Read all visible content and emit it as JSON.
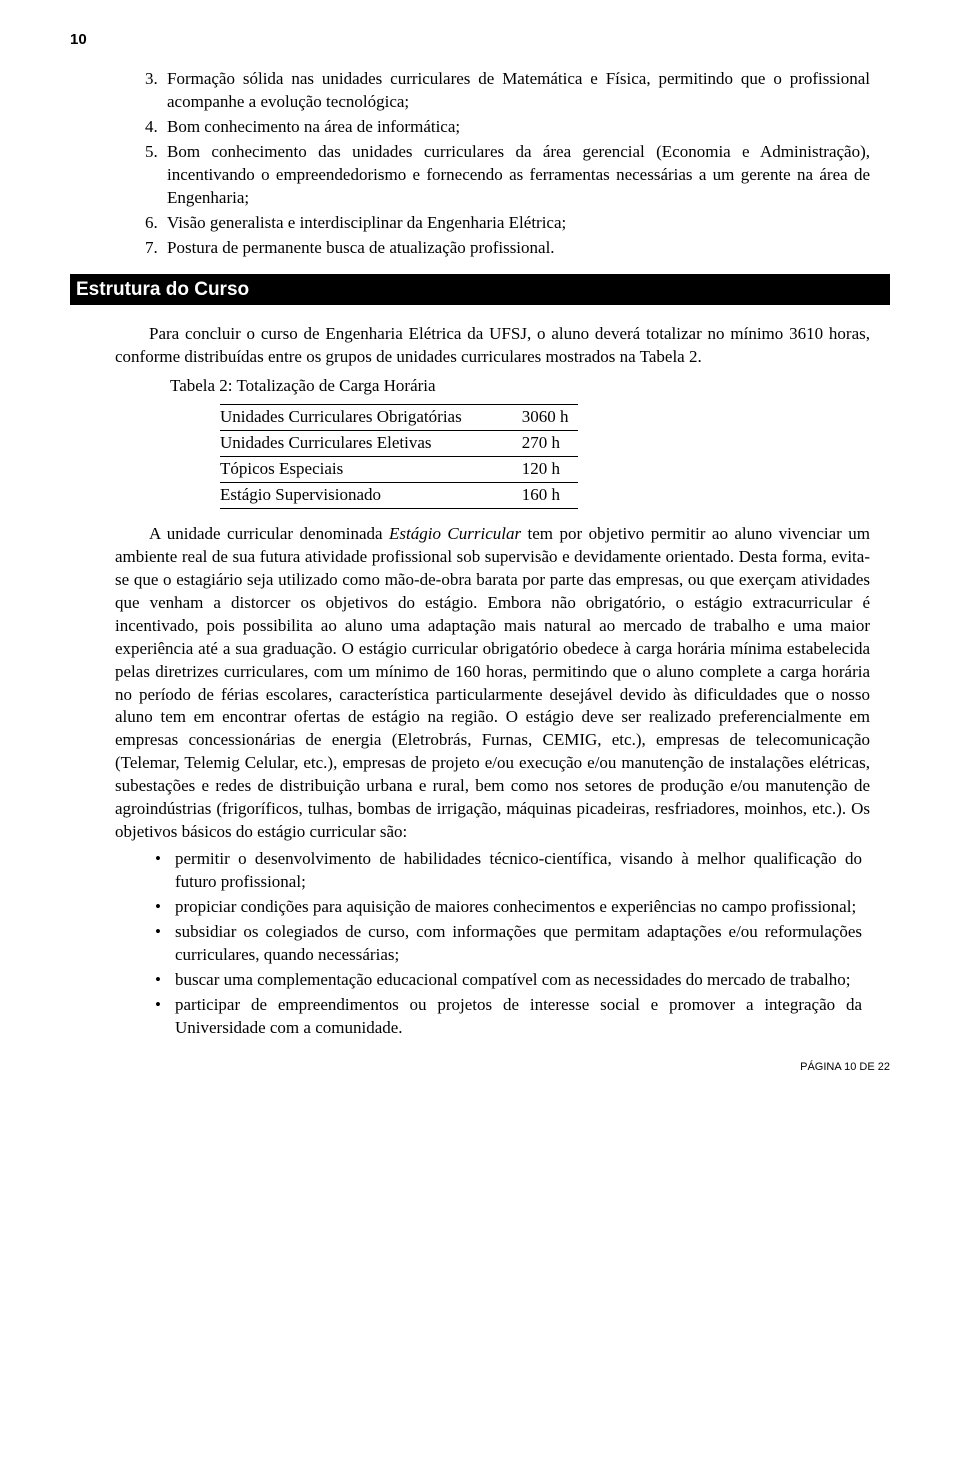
{
  "page_number_top": "10",
  "numbered_items": [
    {
      "n": "3.",
      "t": "Formação sólida nas unidades curriculares de Matemática e Física, permitindo que o profissional acompanhe a evolução tecnológica;"
    },
    {
      "n": "4.",
      "t": "Bom conhecimento na área de informática;"
    },
    {
      "n": "5.",
      "t": "Bom conhecimento das unidades curriculares da área gerencial (Economia e Administração), incentivando o empreendedorismo e fornecendo as ferramentas necessárias a um gerente na área de Engenharia;"
    },
    {
      "n": "6.",
      "t": "Visão generalista e interdisciplinar da Engenharia Elétrica;"
    },
    {
      "n": "7.",
      "t": "Postura de permanente busca de atualização profissional."
    }
  ],
  "section_title": "Estrutura do Curso",
  "para1": "Para concluir o curso de Engenharia Elétrica da UFSJ, o aluno deverá totalizar no mínimo 3610 horas, conforme distribuídas entre os grupos de unidades curriculares mostrados na Tabela 2.",
  "table_caption": "Tabela 2: Totalização de Carga Horária",
  "table_rows": [
    {
      "label": "Unidades Curriculares Obrigatórias",
      "value": "3060 h"
    },
    {
      "label": "Unidades Curriculares Eletivas",
      "value": "270 h"
    },
    {
      "label": "Tópicos Especiais",
      "value": "120 h"
    },
    {
      "label": "Estágio Supervisionado",
      "value": "160 h"
    }
  ],
  "para2_a": "A unidade curricular denominada ",
  "para2_em": "Estágio Curricular",
  "para2_b": " tem por objetivo permitir ao aluno vivenciar um ambiente real de sua futura atividade profissional sob supervisão e devidamente orientado. Desta forma, evita-se que o estagiário seja utilizado como mão-de-obra barata por parte das empresas, ou que exerçam atividades que venham a distorcer os objetivos do estágio. Embora não obrigatório, o estágio extracurricular é incentivado, pois possibilita ao aluno uma adaptação mais natural ao mercado de trabalho e uma maior experiência até a sua graduação. O estágio curricular obrigatório obedece à carga horária mínima estabelecida pelas diretrizes curriculares, com um mínimo de 160 horas, permitindo que o aluno complete a carga horária no período de férias escolares, característica particularmente desejável devido às dificuldades que o nosso aluno tem em encontrar ofertas de estágio na região. O estágio deve ser realizado preferencialmente em empresas concessionárias de energia (Eletrobrás, Furnas, CEMIG, etc.), empresas de telecomunicação (Telemar, Telemig Celular, etc.), empresas de projeto e/ou execução e/ou manutenção de instalações elétricas, subestações e redes de distribuição urbana e rural, bem como nos setores de produção e/ou manutenção de agroindústrias (frigoríficos, tulhas, bombas de irrigação, máquinas picadeiras, resfriadores, moinhos, etc.). Os objetivos básicos do estágio curricular são:",
  "bullets": [
    "permitir o desenvolvimento de habilidades técnico-científica, visando à melhor qualificação do futuro profissional;",
    "propiciar condições para aquisição de maiores conhecimentos e experiências no campo profissional;",
    "subsidiar os colegiados de curso, com informações que permitam adaptações e/ou reformulações curriculares, quando necessárias;",
    "buscar uma complementação educacional compatível com as necessidades do mercado de trabalho;",
    "participar de empreendimentos ou projetos de interesse social e promover a integração da Universidade com a comunidade."
  ],
  "footer": "PÁGINA 10 DE 22",
  "colors": {
    "text": "#000000",
    "bg": "#ffffff",
    "bar_bg": "#000000",
    "bar_text": "#ffffff"
  }
}
